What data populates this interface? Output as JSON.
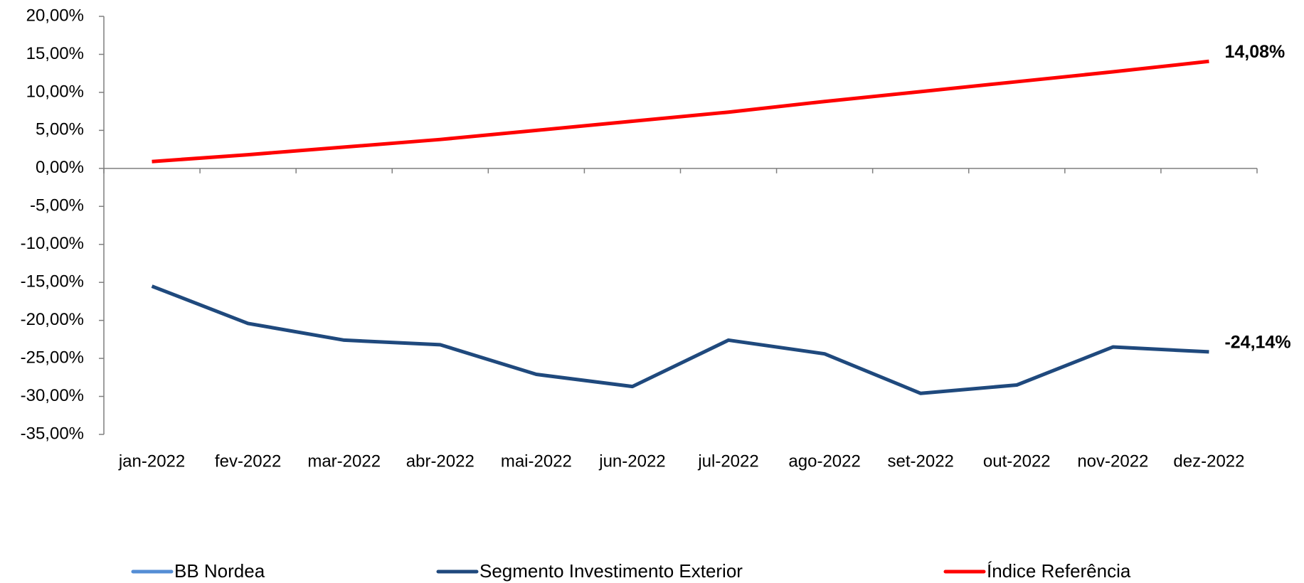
{
  "chart_data": {
    "type": "line",
    "categories": [
      "jan-2022",
      "fev-2022",
      "mar-2022",
      "abr-2022",
      "mai-2022",
      "jun-2022",
      "jul-2022",
      "ago-2022",
      "set-2022",
      "out-2022",
      "nov-2022",
      "dez-2022"
    ],
    "series": [
      {
        "name": "BB Nordea",
        "color": "#558ed5",
        "values": [
          null,
          null,
          null,
          null,
          null,
          null,
          null,
          null,
          null,
          null,
          null,
          null
        ]
      },
      {
        "name": "Segmento Investimento Exterior",
        "color": "#1f497d",
        "values": [
          -15.5,
          -20.4,
          -22.6,
          -23.2,
          -27.1,
          -28.7,
          -22.6,
          -24.4,
          -29.6,
          -28.5,
          -23.5,
          -24.14
        ],
        "value_labels": [
          null,
          null,
          null,
          null,
          null,
          null,
          null,
          null,
          null,
          null,
          null,
          "-24,14%"
        ]
      },
      {
        "name": "Índice Referência",
        "color": "#ff0000",
        "values": [
          0.9,
          1.8,
          2.8,
          3.8,
          5.0,
          6.2,
          7.4,
          8.8,
          10.1,
          11.4,
          12.7,
          14.08
        ],
        "value_labels": [
          null,
          null,
          null,
          null,
          null,
          null,
          null,
          null,
          null,
          null,
          null,
          "14,08%"
        ]
      }
    ],
    "ylim": [
      -35,
      20
    ],
    "yticks": [
      {
        "value": 20,
        "label": "20,00%"
      },
      {
        "value": 15,
        "label": "15,00%"
      },
      {
        "value": 10,
        "label": "10,00%"
      },
      {
        "value": 5,
        "label": "5,00%"
      },
      {
        "value": 0,
        "label": "0,00%"
      },
      {
        "value": -5,
        "label": "-5,00%"
      },
      {
        "value": -10,
        "label": "-10,00%"
      },
      {
        "value": -15,
        "label": "-15,00%"
      },
      {
        "value": -20,
        "label": "-20,00%"
      },
      {
        "value": -25,
        "label": "-25,00%"
      },
      {
        "value": -30,
        "label": "-30,00%"
      },
      {
        "value": -35,
        "label": "-35,00%"
      }
    ],
    "legend": "bottom"
  }
}
